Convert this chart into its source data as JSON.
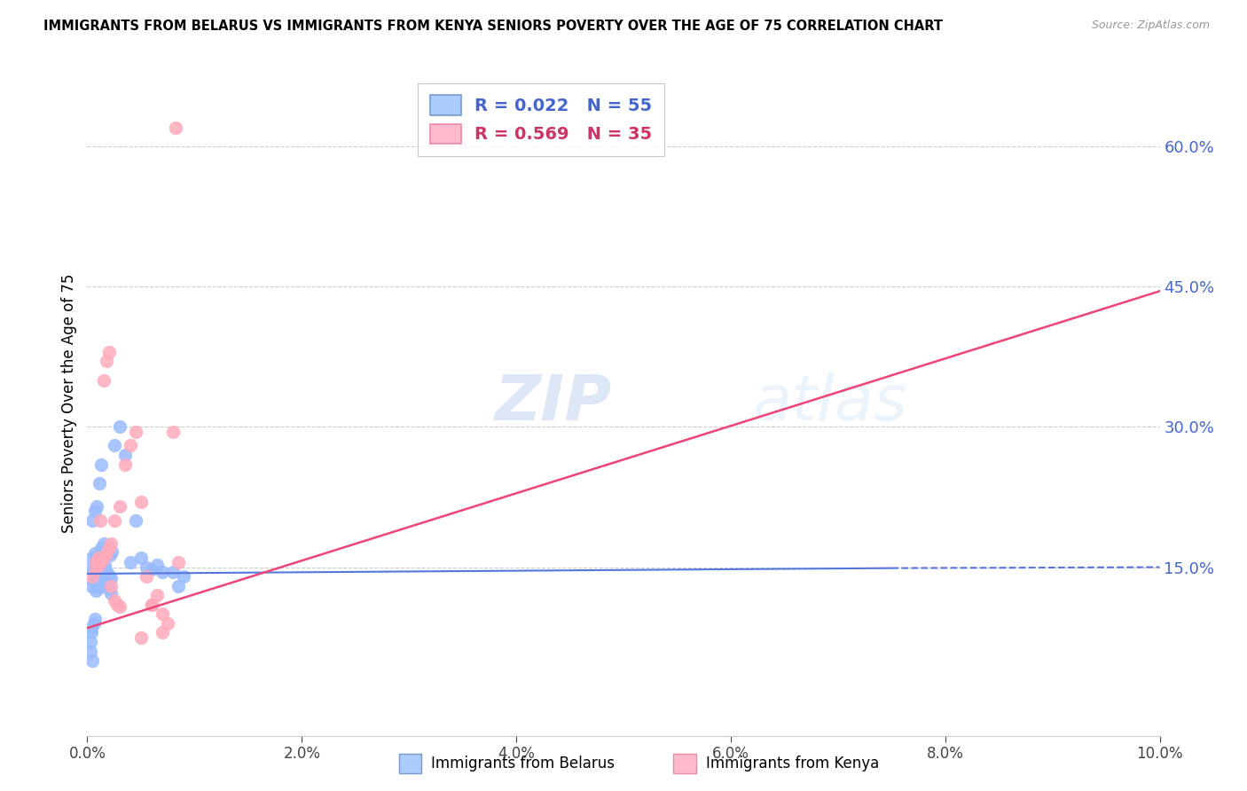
{
  "title": "IMMIGRANTS FROM BELARUS VS IMMIGRANTS FROM KENYA SENIORS POVERTY OVER THE AGE OF 75 CORRELATION CHART",
  "source": "Source: ZipAtlas.com",
  "ylabel": "Seniors Poverty Over the Age of 75",
  "xlim": [
    0.0,
    0.1
  ],
  "ylim": [
    -0.03,
    0.68
  ],
  "ytick_vals": [
    0.15,
    0.3,
    0.45,
    0.6
  ],
  "ytick_labels": [
    "15.0%",
    "30.0%",
    "45.0%",
    "60.0%"
  ],
  "xtick_vals": [
    0.0,
    0.02,
    0.04,
    0.06,
    0.08,
    0.1
  ],
  "xtick_labels": [
    "0.0%",
    "2.0%",
    "4.0%",
    "6.0%",
    "8.0%",
    "10.0%"
  ],
  "belarus_color": "#99bbff",
  "kenya_color": "#ffaabb",
  "belarus_line_color": "#5577dd",
  "kenya_line_color": "#ee4477",
  "background_color": "#ffffff",
  "watermark_text": "ZIPatlas",
  "legend_bel_label": "R = 0.022   N = 55",
  "legend_ken_label": "R = 0.569   N = 35",
  "bottom_label_bel": "Immigrants from Belarus",
  "bottom_label_ken": "Immigrants from Kenya",
  "belarus_x": [
    0.0004,
    0.0006,
    0.0008,
    0.001,
    0.0012,
    0.0014,
    0.0016,
    0.0018,
    0.002,
    0.0022,
    0.0004,
    0.0006,
    0.0008,
    0.001,
    0.0012,
    0.0014,
    0.0016,
    0.0018,
    0.002,
    0.0022,
    0.0005,
    0.0007,
    0.0009,
    0.0011,
    0.0013,
    0.0015,
    0.0017,
    0.0019,
    0.0021,
    0.0023,
    0.0005,
    0.0007,
    0.0009,
    0.0011,
    0.0013,
    0.0025,
    0.003,
    0.0035,
    0.004,
    0.0045,
    0.005,
    0.0055,
    0.006,
    0.0065,
    0.007,
    0.008,
    0.0085,
    0.009,
    0.0003,
    0.0003,
    0.0004,
    0.0004,
    0.0005,
    0.0006,
    0.0007
  ],
  "belarus_y": [
    0.15,
    0.145,
    0.14,
    0.155,
    0.148,
    0.143,
    0.152,
    0.146,
    0.141,
    0.138,
    0.13,
    0.135,
    0.125,
    0.128,
    0.132,
    0.136,
    0.14,
    0.133,
    0.127,
    0.122,
    0.16,
    0.165,
    0.158,
    0.162,
    0.17,
    0.175,
    0.168,
    0.172,
    0.163,
    0.167,
    0.2,
    0.21,
    0.215,
    0.24,
    0.26,
    0.28,
    0.3,
    0.27,
    0.155,
    0.2,
    0.16,
    0.15,
    0.148,
    0.152,
    0.145,
    0.145,
    0.13,
    0.14,
    0.06,
    0.07,
    0.08,
    0.085,
    0.05,
    0.09,
    0.095
  ],
  "kenya_x": [
    0.0005,
    0.0008,
    0.001,
    0.0012,
    0.0015,
    0.0018,
    0.002,
    0.0022,
    0.0025,
    0.003,
    0.0035,
    0.004,
    0.0045,
    0.005,
    0.0055,
    0.006,
    0.0065,
    0.007,
    0.0075,
    0.008,
    0.0008,
    0.001,
    0.0012,
    0.0015,
    0.0018,
    0.002,
    0.0022,
    0.0025,
    0.0028,
    0.003,
    0.005,
    0.006,
    0.007,
    0.0085,
    0.0082
  ],
  "kenya_y": [
    0.14,
    0.148,
    0.152,
    0.155,
    0.16,
    0.165,
    0.17,
    0.175,
    0.2,
    0.215,
    0.26,
    0.28,
    0.295,
    0.22,
    0.14,
    0.11,
    0.12,
    0.1,
    0.09,
    0.295,
    0.155,
    0.16,
    0.2,
    0.35,
    0.37,
    0.38,
    0.13,
    0.115,
    0.11,
    0.108,
    0.075,
    0.11,
    0.08,
    0.155,
    0.62
  ],
  "bel_line_x": [
    0.0,
    0.075,
    0.1
  ],
  "bel_line_y_solid_end": 0.075,
  "ken_line_x0": 0.0,
  "ken_line_x1": 0.1,
  "ken_line_y0": 0.085,
  "ken_line_y1": 0.445
}
